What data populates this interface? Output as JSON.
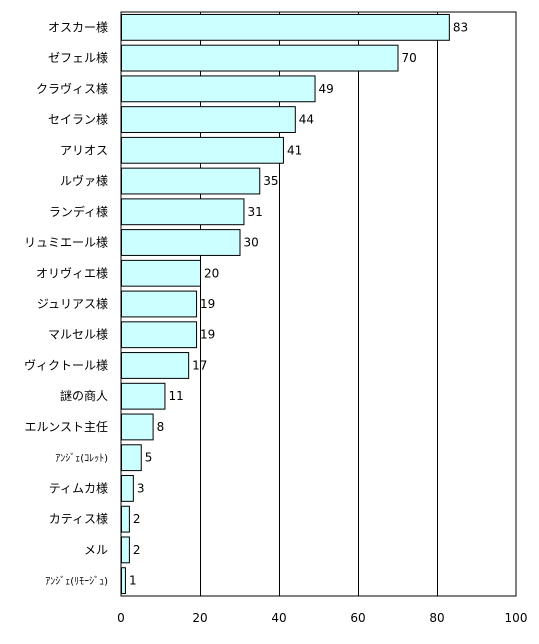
{
  "chart_data": {
    "type": "bar",
    "orientation": "horizontal",
    "categories": [
      "オスカー様",
      "ゼフェル様",
      "クラヴィス様",
      "セイラン様",
      "アリオス",
      "ルヴァ様",
      "ランディ様",
      "リュミエール様",
      "オリヴィエ様",
      "ジュリアス様",
      "マルセル様",
      "ヴィクトール様",
      "謎の商人",
      "エルンスト主任",
      "ｱﾝｼﾞｪ(ｺﾚｯﾄ)",
      "ティムカ様",
      "カティス様",
      "メル",
      "ｱﾝｼﾞｪ(ﾘﾓｰｼﾞｭ)"
    ],
    "values": [
      83,
      70,
      49,
      44,
      41,
      35,
      31,
      30,
      20,
      19,
      19,
      17,
      11,
      8,
      5,
      3,
      2,
      2,
      1
    ],
    "xlim": [
      0,
      100
    ],
    "xticks": [
      0,
      20,
      40,
      60,
      80,
      100
    ],
    "grid": true,
    "title": "",
    "xlabel": "",
    "ylabel": ""
  },
  "colors": {
    "bar_fill": "#ccffff",
    "bar_stroke": "#000000",
    "grid": "#000000",
    "background": "#ffffff"
  }
}
